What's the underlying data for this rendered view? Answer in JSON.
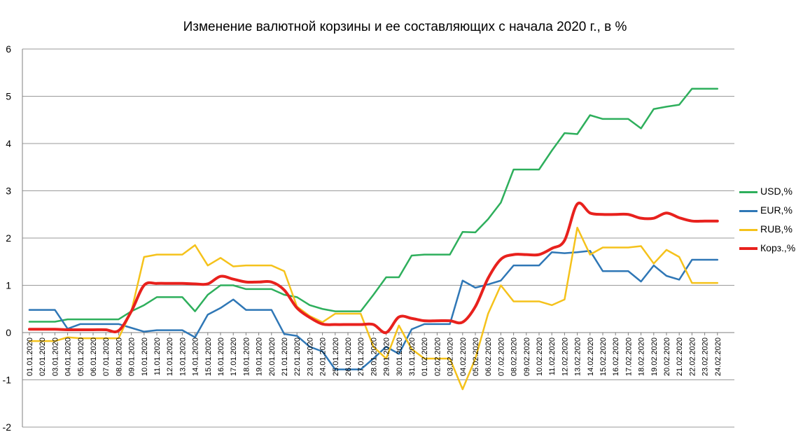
{
  "chart_data": {
    "type": "line",
    "title": "Изменение валютной корзины и ее составляющих с начала 2020 г., в %",
    "xlabel": "",
    "ylabel": "",
    "ylim": [
      -2,
      6
    ],
    "yticks": [
      -2,
      -1,
      0,
      1,
      2,
      3,
      4,
      5,
      6
    ],
    "grid": true,
    "legend_position": "right",
    "categories": [
      "01.01.2020",
      "02.01.2020",
      "03.01.2020",
      "04.01.2020",
      "05.01.2020",
      "06.01.2020",
      "07.01.2020",
      "08.01.2020",
      "09.01.2020",
      "10.01.2020",
      "11.01.2020",
      "12.01.2020",
      "13.01.2020",
      "14.01.2020",
      "15.01.2020",
      "16.01.2020",
      "17.01.2020",
      "18.01.2020",
      "19.01.2020",
      "20.01.2020",
      "21.01.2020",
      "22.01.2020",
      "23.01.2020",
      "24.01.2020",
      "25.01.2020",
      "26.01.2020",
      "27.01.2020",
      "28.01.2020",
      "29.01.2020",
      "30.01.2020",
      "31.01.2020",
      "01.02.2020",
      "02.02.2020",
      "03.02.2020",
      "04.02.2020",
      "05.02.2020",
      "06.02.2020",
      "07.02.2020",
      "08.02.2020",
      "09.02.2020",
      "10.02.2020",
      "11.02.2020",
      "12.02.2020",
      "13.02.2020",
      "14.02.2020",
      "15.02.2020",
      "16.02.2020",
      "17.02.2020",
      "18.02.2020",
      "19.02.2020",
      "20.02.2020",
      "21.02.2020",
      "22.02.2020",
      "23.02.2020",
      "24.02.2020"
    ],
    "series": [
      {
        "name": "USD,%",
        "color": "#2EAF5C",
        "width": 2.5,
        "smooth": false,
        "values": [
          0.23,
          0.23,
          0.23,
          0.28,
          0.28,
          0.28,
          0.28,
          0.28,
          0.45,
          0.58,
          0.75,
          0.75,
          0.75,
          0.45,
          0.8,
          1.0,
          1.0,
          0.92,
          0.92,
          0.92,
          0.8,
          0.75,
          0.58,
          0.5,
          0.45,
          0.45,
          0.45,
          0.8,
          1.17,
          1.17,
          1.63,
          1.65,
          1.65,
          1.65,
          2.13,
          2.12,
          2.4,
          2.75,
          3.45,
          3.45,
          3.45,
          3.85,
          4.22,
          4.2,
          4.6,
          4.52,
          4.52,
          4.52,
          4.32,
          4.73,
          4.78,
          4.82,
          5.16,
          5.16,
          5.16
        ]
      },
      {
        "name": "EUR,%",
        "color": "#2F77B6",
        "width": 2.5,
        "smooth": false,
        "values": [
          0.48,
          0.48,
          0.48,
          0.08,
          0.18,
          0.18,
          0.18,
          0.18,
          0.1,
          0.02,
          0.05,
          0.05,
          0.05,
          -0.1,
          0.38,
          0.52,
          0.7,
          0.48,
          0.48,
          0.48,
          -0.03,
          -0.07,
          -0.3,
          -0.4,
          -0.78,
          -0.78,
          -0.78,
          -0.55,
          -0.3,
          -0.45,
          0.07,
          0.18,
          0.18,
          0.18,
          1.1,
          0.95,
          1.02,
          1.1,
          1.42,
          1.42,
          1.42,
          1.7,
          1.68,
          1.7,
          1.73,
          1.3,
          1.3,
          1.3,
          1.08,
          1.42,
          1.2,
          1.12,
          1.54,
          1.54,
          1.54
        ]
      },
      {
        "name": "RUB,%",
        "color": "#F5C21B",
        "width": 2.5,
        "smooth": false,
        "values": [
          -0.18,
          -0.18,
          -0.18,
          -0.1,
          -0.12,
          -0.12,
          -0.12,
          -0.12,
          0.45,
          1.6,
          1.65,
          1.65,
          1.65,
          1.85,
          1.42,
          1.58,
          1.4,
          1.42,
          1.42,
          1.42,
          1.3,
          0.55,
          0.35,
          0.22,
          0.4,
          0.4,
          0.4,
          -0.3,
          -0.55,
          0.15,
          -0.35,
          -0.55,
          -0.55,
          -0.55,
          -1.2,
          -0.55,
          0.4,
          1.0,
          0.66,
          0.66,
          0.66,
          0.58,
          0.7,
          2.22,
          1.65,
          1.8,
          1.8,
          1.8,
          1.83,
          1.46,
          1.75,
          1.6,
          1.05,
          1.05,
          1.05
        ]
      },
      {
        "name": "Корз.,%",
        "color": "#E8211D",
        "width": 4,
        "smooth": true,
        "values": [
          0.07,
          0.07,
          0.07,
          0.06,
          0.06,
          0.06,
          0.06,
          0.04,
          0.45,
          1.0,
          1.04,
          1.04,
          1.04,
          1.03,
          1.03,
          1.19,
          1.13,
          1.07,
          1.07,
          1.07,
          0.9,
          0.52,
          0.32,
          0.18,
          0.17,
          0.17,
          0.17,
          0.17,
          0.0,
          0.33,
          0.3,
          0.25,
          0.25,
          0.25,
          0.22,
          0.55,
          1.15,
          1.55,
          1.65,
          1.65,
          1.65,
          1.78,
          1.95,
          2.72,
          2.53,
          2.5,
          2.5,
          2.5,
          2.42,
          2.42,
          2.53,
          2.43,
          2.36,
          2.36,
          2.36
        ]
      }
    ]
  }
}
